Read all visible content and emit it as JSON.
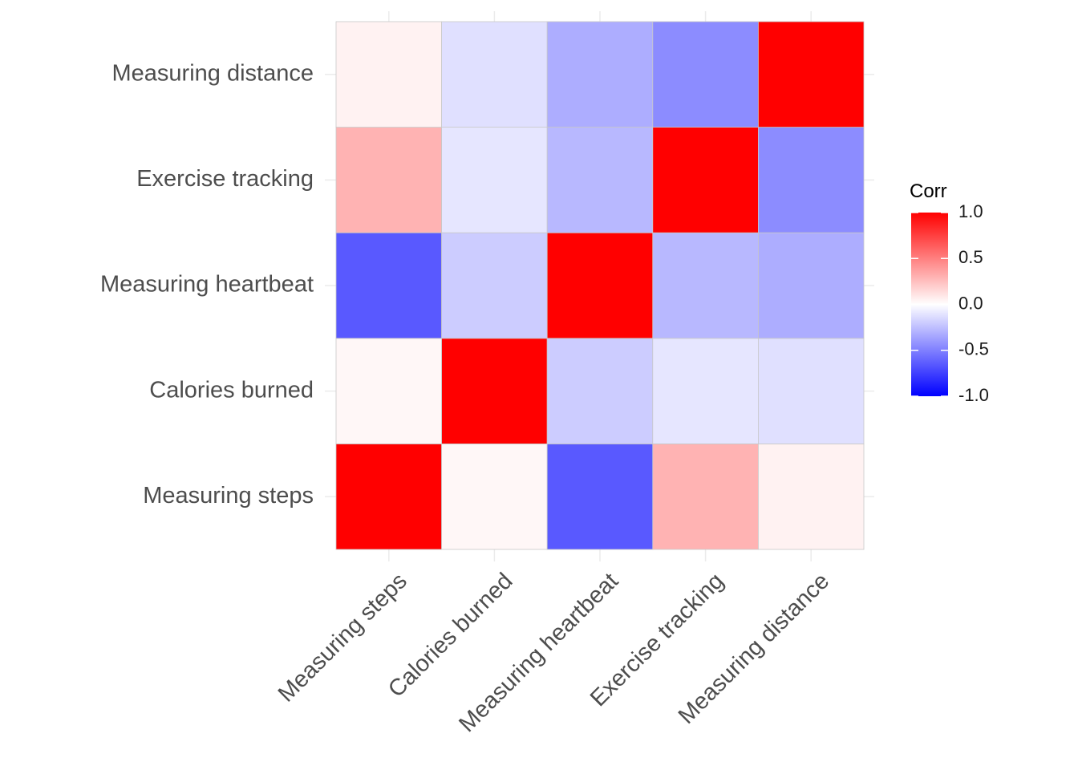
{
  "chart_data": {
    "type": "heatmap",
    "title": "",
    "xlabel": "",
    "ylabel": "",
    "x": [
      "Measuring steps",
      "Calories burned",
      "Measuring heartbeat",
      "Exercise tracking",
      "Measuring distance"
    ],
    "y": [
      "Measuring steps",
      "Calories burned",
      "Measuring heartbeat",
      "Exercise tracking",
      "Measuring distance"
    ],
    "values": [
      [
        1.0,
        0.03,
        -0.65,
        0.3,
        0.05
      ],
      [
        0.03,
        1.0,
        -0.2,
        -0.1,
        -0.12
      ],
      [
        -0.65,
        -0.2,
        1.0,
        -0.28,
        -0.32
      ],
      [
        0.3,
        -0.1,
        -0.28,
        1.0,
        -0.45
      ],
      [
        0.05,
        -0.12,
        -0.32,
        -0.45,
        1.0
      ]
    ],
    "legend": {
      "title": "Corr",
      "position": "right",
      "ticks": [
        "1.0",
        "0.5",
        "0.0",
        "-0.5",
        "-1.0"
      ],
      "range": [
        -1,
        1
      ]
    },
    "colors": {
      "low": "#0000ff",
      "mid": "#ffffff",
      "high": "#ff0000",
      "grid": "#ebebeb",
      "tile_border": "#c8c8c8",
      "axis_text": "#4d4d4d"
    },
    "grid": true
  }
}
